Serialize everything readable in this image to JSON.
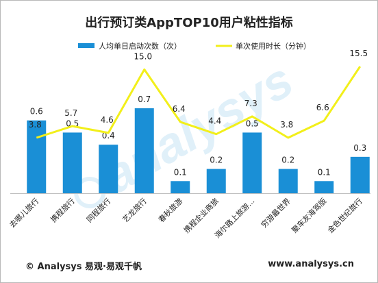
{
  "chart_data": {
    "type": "bar+line",
    "title": "出行预订类AppTOP10用户粘性指标",
    "categories": [
      "去哪儿旅行",
      "携程旅行",
      "同程旅行",
      "艺龙旅行",
      "春秋旅游",
      "携程企业商旅",
      "海尔路上旅游...",
      "穷游最世界",
      "聚车友海驾版",
      "金色世纪旅行"
    ],
    "series": [
      {
        "name": "人均单日启动次数（次）",
        "type": "bar",
        "color": "#1a8fd6",
        "values": [
          0.6,
          0.5,
          0.4,
          0.7,
          0.1,
          0.2,
          0.5,
          0.2,
          0.1,
          0.3
        ],
        "labels": [
          "0.6",
          "0.5",
          "0.4",
          "0.7",
          "0.1",
          "0.2",
          "0.5",
          "0.2",
          "0.1",
          "0.3"
        ]
      },
      {
        "name": "单次使用时长（分钟）",
        "type": "line",
        "color": "#f2ef1a",
        "values": [
          3.8,
          5.7,
          4.6,
          15.0,
          6.4,
          4.4,
          7.3,
          3.8,
          6.6,
          15.5
        ],
        "labels": [
          "3.8",
          "5.7",
          "4.6",
          "15.0",
          "6.4",
          "4.4",
          "7.3",
          "3.8",
          "6.6",
          "15.5"
        ]
      }
    ],
    "legend_position": "top",
    "grid": false
  },
  "watermark": "analysys",
  "footer": {
    "left": "© Analysys 易观·易观千帆",
    "right": "www.analysys.cn"
  }
}
